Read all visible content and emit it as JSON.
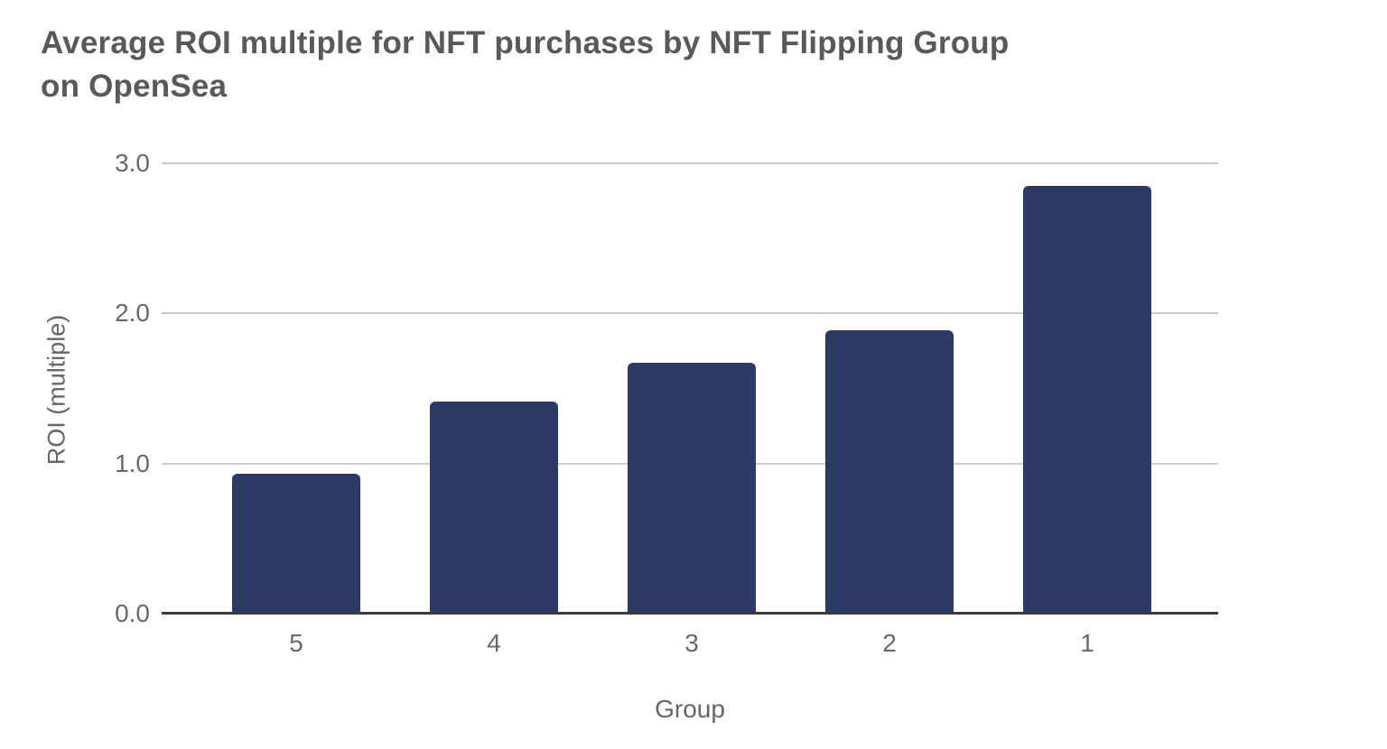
{
  "chart_data": {
    "type": "bar",
    "title": "Average ROI multiple for NFT purchases by NFT Flipping Group on OpenSea",
    "title_lines": [
      "Average ROI multiple for NFT purchases by NFT Flipping Group",
      "on OpenSea"
    ],
    "xlabel": "Group",
    "ylabel": "ROI (multiple)",
    "categories": [
      "5",
      "4",
      "3",
      "2",
      "1"
    ],
    "values": [
      0.93,
      1.41,
      1.67,
      1.89,
      2.85
    ],
    "ylim": [
      0,
      3
    ],
    "yticks": [
      0,
      1,
      2,
      3
    ],
    "ytick_labels": [
      "0.0",
      "1.0",
      "2.0",
      "3.0"
    ],
    "grid": true,
    "legend": false,
    "bar_color": "#2d3a66"
  },
  "colors": {
    "background": "#ffffff",
    "title": "#58595b",
    "axis_titles": "#666666",
    "tick_labels": "#696969",
    "gridline": "#cccccc",
    "axis_line": "#3c3c3c",
    "bar": "#2d3a66"
  }
}
